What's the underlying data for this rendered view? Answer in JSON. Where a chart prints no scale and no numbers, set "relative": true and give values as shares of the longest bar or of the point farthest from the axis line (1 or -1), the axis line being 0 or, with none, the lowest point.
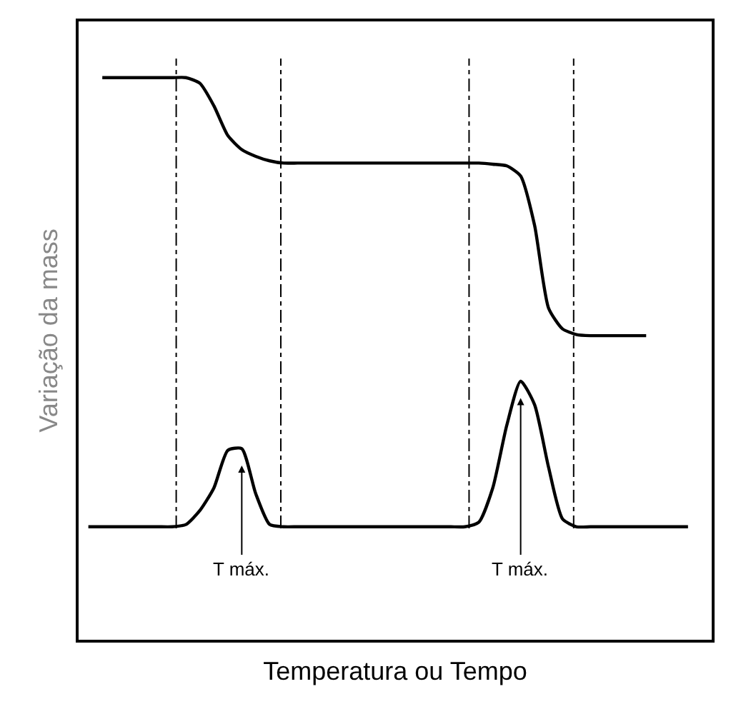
{
  "chart_data": {
    "type": "line",
    "relative": true,
    "xlabel": "Temperatura ou Tempo",
    "ylabel": "Variação da mass",
    "marker": "none",
    "line_style": "solid",
    "categories": [
      null,
      null,
      null,
      null,
      null,
      null,
      null,
      null,
      null,
      null,
      null,
      null,
      null,
      null,
      null,
      null,
      null,
      null,
      null,
      null,
      null,
      null,
      null,
      null,
      null,
      null,
      null,
      null,
      null,
      null,
      null,
      null,
      null,
      null,
      null,
      null,
      null,
      null,
      null,
      null,
      null,
      null,
      null,
      null,
      null
    ],
    "series": [
      {
        "color": "#000000",
        "values": [
          null,
          1.0,
          1.0,
          1.0,
          1.0,
          1.0,
          1.0,
          1.0,
          0.99,
          0.95,
          0.897,
          0.872,
          0.86,
          0.852,
          0.848,
          0.848,
          0.848,
          0.848,
          0.848,
          0.848,
          0.848,
          0.848,
          0.848,
          0.848,
          0.848,
          0.848,
          0.848,
          0.848,
          0.848,
          0.846,
          0.843,
          0.825,
          0.737,
          0.59,
          0.553,
          0.543,
          0.541,
          0.541,
          0.541,
          0.541,
          0.541,
          null,
          null,
          null,
          null
        ]
      },
      {
        "color": "#000000",
        "values": [
          0.201,
          0.201,
          0.201,
          0.201,
          0.201,
          0.201,
          0.201,
          0.205,
          0.23,
          0.27,
          0.337,
          0.34,
          0.26,
          0.205,
          0.201,
          0.201,
          0.201,
          0.201,
          0.201,
          0.201,
          0.201,
          0.201,
          0.201,
          0.201,
          0.201,
          0.201,
          0.201,
          0.201,
          0.209,
          0.27,
          0.381,
          0.46,
          0.418,
          0.307,
          0.215,
          0.201,
          0.201,
          0.201,
          0.201,
          0.201,
          0.201,
          0.201,
          0.201,
          0.201,
          null
        ]
      }
    ],
    "annotations": [
      "T máx.",
      "T máx."
    ]
  }
}
